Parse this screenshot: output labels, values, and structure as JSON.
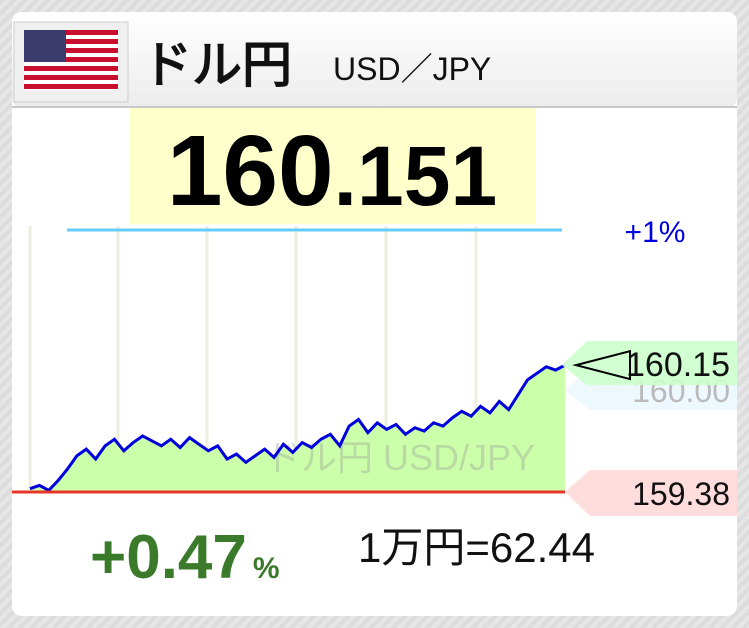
{
  "header": {
    "title": "ドル円",
    "pair": "USD／JPY"
  },
  "price": {
    "integer": "160",
    "decimal": ".151"
  },
  "chart": {
    "watermark": "ドル円 USD/JPY",
    "ylim": [
      159.38,
      160.97
    ],
    "band": {
      "value": 160.97,
      "label": "+1%"
    },
    "current": {
      "value": 160.15,
      "label": "160.15"
    },
    "reference": {
      "value": 160.0,
      "label": "160.00"
    },
    "low": {
      "value": 159.38,
      "label": "159.38"
    },
    "values": [
      159.4,
      159.42,
      159.39,
      159.45,
      159.52,
      159.6,
      159.64,
      159.58,
      159.66,
      159.7,
      159.63,
      159.68,
      159.72,
      159.69,
      159.66,
      159.7,
      159.65,
      159.71,
      159.67,
      159.63,
      159.66,
      159.58,
      159.61,
      159.56,
      159.6,
      159.64,
      159.59,
      159.67,
      159.62,
      159.68,
      159.65,
      159.7,
      159.73,
      159.66,
      159.78,
      159.82,
      159.74,
      159.8,
      159.76,
      159.79,
      159.73,
      159.77,
      159.75,
      159.8,
      159.78,
      159.83,
      159.87,
      159.84,
      159.9,
      159.86,
      159.93,
      159.88,
      159.97,
      160.06,
      160.1,
      160.14,
      160.12,
      160.15
    ]
  },
  "footer": {
    "change": "+0.47",
    "change_unit": "%",
    "conversion": "1万円=62.44"
  }
}
